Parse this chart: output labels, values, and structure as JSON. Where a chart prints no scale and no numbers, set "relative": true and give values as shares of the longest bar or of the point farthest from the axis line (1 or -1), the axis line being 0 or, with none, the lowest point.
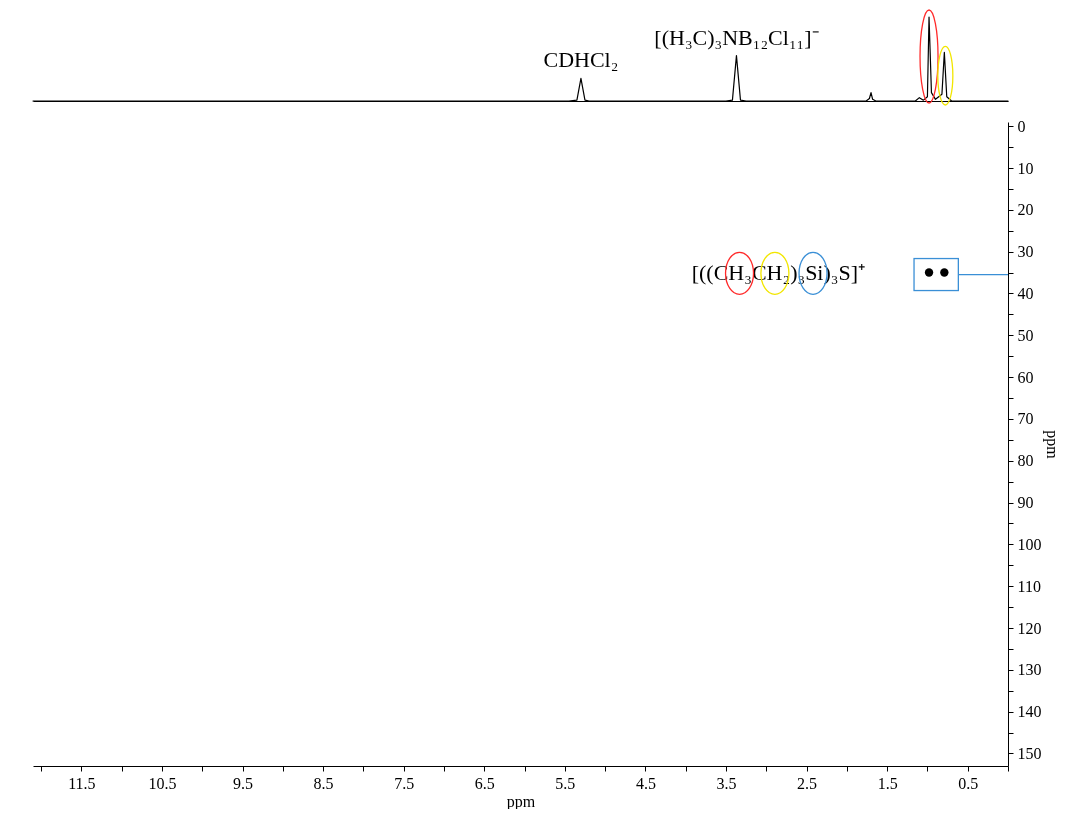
{
  "chart_data": [
    {
      "type": "line",
      "relative": true,
      "xlim": [
        12.1,
        0
      ],
      "x": [
        12.1,
        5.45,
        5.35,
        5.3,
        5.25,
        5.2,
        3.5,
        3.42,
        3.37,
        3.32,
        3.25,
        1.76,
        1.72,
        1.7,
        1.68,
        1.64,
        1.15,
        1.1,
        1.05,
        1.0,
        0.98,
        0.95,
        0.9,
        0.82,
        0.79,
        0.76,
        0.7,
        0.0
      ],
      "color": "#000000",
      "values": [
        0,
        0,
        0.01,
        0.27,
        0.01,
        0,
        0,
        0.01,
        0.54,
        0.01,
        0,
        0,
        0.03,
        0.1,
        0.02,
        0,
        0,
        0.04,
        0.01,
        0.05,
        1.0,
        0.1,
        0.02,
        0.08,
        0.58,
        0.05,
        0,
        0
      ],
      "annotations": [
        {
          "text": "CDHCl₂",
          "x": 5.3,
          "y": 0.27
        },
        {
          "text": "[(H₃C)₃NB₁₂Cl₁₁]⁻",
          "x": 3.37,
          "y": 0.54
        }
      ]
    },
    {
      "type": "scatter",
      "xlim": [
        12.1,
        0
      ],
      "ylim": [
        153,
        -1
      ],
      "marker": "circle",
      "xlabel": "ppm",
      "ylabel": "ppm",
      "xticks": [
        {
          "value": 12,
          "label": null
        },
        11.5,
        {
          "value": 11,
          "label": null
        },
        10.5,
        {
          "value": 10,
          "label": null
        },
        9.5,
        {
          "value": 9,
          "label": null
        },
        8.5,
        {
          "value": 8,
          "label": null
        },
        7.5,
        {
          "value": 7,
          "label": null
        },
        6.5,
        {
          "value": 6,
          "label": null
        },
        5.5,
        {
          "value": 5,
          "label": null
        },
        4.5,
        {
          "value": 4,
          "label": null
        },
        3.5,
        {
          "value": 3,
          "label": null
        },
        2.5,
        {
          "value": 2,
          "label": null
        },
        1.5,
        {
          "value": 1,
          "label": null
        },
        0.5,
        {
          "value": 0,
          "label": null
        }
      ],
      "yticks": [
        0,
        {
          "value": 5,
          "label": null
        },
        10,
        {
          "value": 15,
          "label": null
        },
        20,
        {
          "value": 25,
          "label": null
        },
        30,
        {
          "value": 35,
          "label": null
        },
        40,
        {
          "value": 45,
          "label": null
        },
        50,
        {
          "value": 55,
          "label": null
        },
        60,
        {
          "value": 65,
          "label": null
        },
        70,
        {
          "value": 75,
          "label": null
        },
        80,
        {
          "value": 85,
          "label": null
        },
        90,
        {
          "value": 95,
          "label": null
        },
        100,
        {
          "value": 105,
          "label": null
        },
        110,
        {
          "value": 115,
          "label": null
        },
        120,
        {
          "value": 125,
          "label": null
        },
        130,
        {
          "value": 135,
          "label": null
        },
        140,
        {
          "value": 145,
          "label": null
        },
        150
      ],
      "x": [
        0.98,
        0.79
      ],
      "series": [
        {
          "color": "#000000",
          "values": [
            35,
            35
          ]
        }
      ],
      "annotations": [
        {
          "text": "[((CH₃CH₂)₃Si)₃S]⁺",
          "x": 0.98,
          "y": 35
        }
      ]
    }
  ]
}
